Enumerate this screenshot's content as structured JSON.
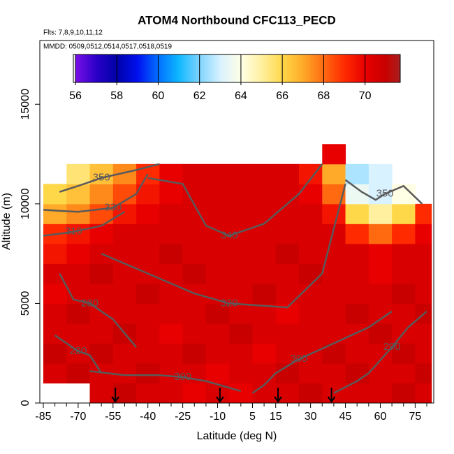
{
  "chart_data": {
    "type": "curtain",
    "title": "ATOM4 Northbound CFC113_PECD",
    "subtitle": "Flts: 7,8,9,10,11,12",
    "subtitle2": "MMDD: 0509,0512,0514,0517,0518,0519",
    "xlabel": "Latitude (deg N)",
    "ylabel": "Altitude (m)",
    "xlim": [
      -86.5,
      83
    ],
    "ylim": [
      0,
      18200
    ],
    "xticks": [
      -85,
      -70,
      -55,
      -40,
      -25,
      -10,
      5,
      15,
      30,
      45,
      60,
      75
    ],
    "xminorticks": [
      -80,
      -75,
      -65,
      -60,
      -50,
      -45,
      -35,
      -30,
      -20,
      -15,
      -5,
      0,
      10,
      20,
      25,
      35,
      40,
      50,
      55,
      65,
      70,
      80
    ],
    "yticks": [
      0,
      5000,
      10000,
      15000
    ],
    "colorbar_lim": [
      55.9,
      71.7
    ],
    "colorbar_ticks": [
      56,
      58,
      60,
      62,
      64,
      66,
      68,
      70
    ],
    "colorscale": [
      [
        56,
        "#7a10e8"
      ],
      [
        57,
        "#2a00c8"
      ],
      [
        58,
        "#0000a8"
      ],
      [
        59,
        "#0010f0"
      ],
      [
        60,
        "#0070ff"
      ],
      [
        61,
        "#10b8ff"
      ],
      [
        62,
        "#80d4ff"
      ],
      [
        63,
        "#d8f2ff"
      ],
      [
        64,
        "#ffffe6"
      ],
      [
        65,
        "#fff0a0"
      ],
      [
        66,
        "#ffd84a"
      ],
      [
        67,
        "#ffaa28"
      ],
      [
        68,
        "#ff6a10"
      ],
      [
        69,
        "#ff2a00"
      ],
      [
        70,
        "#e80000"
      ],
      [
        71,
        "#c80000"
      ],
      [
        71.7,
        "#a82020"
      ]
    ],
    "x_edges": [
      -85,
      -75,
      -65,
      -55,
      -45,
      -35,
      -25,
      -15,
      -5,
      5,
      15,
      25,
      35,
      45,
      55,
      65,
      75,
      82
    ],
    "y_edges": [
      0,
      1000,
      2000,
      3000,
      4000,
      5000,
      6000,
      7000,
      8000,
      9000,
      10000,
      11000,
      12000,
      13000
    ],
    "values": [
      [
        null,
        null,
        70.5,
        71,
        70.5,
        70.5,
        70,
        70.5,
        70,
        70.5,
        70.5,
        71,
        70.5,
        70.5,
        70.5,
        71,
        70.5
      ],
      [
        70.5,
        71,
        70.5,
        70.5,
        71,
        70.5,
        70.5,
        70,
        70.5,
        70.5,
        71,
        70.5,
        70.5,
        71,
        70.5,
        70.5,
        71
      ],
      [
        71,
        70.5,
        71,
        70.5,
        70.5,
        70.5,
        71,
        70.5,
        70.5,
        70,
        70.5,
        70.5,
        71,
        70.5,
        70.5,
        71,
        70.5
      ],
      [
        70.5,
        70.5,
        70.5,
        71,
        70.5,
        70,
        70.5,
        70.5,
        71,
        70.5,
        70.5,
        70.5,
        70.5,
        70.5,
        71,
        70.5,
        70.5
      ],
      [
        70.5,
        71,
        70.5,
        70.5,
        70.5,
        70.5,
        70.5,
        71,
        70.5,
        70.5,
        70,
        70.5,
        70.5,
        71,
        70.5,
        70.5,
        71
      ],
      [
        70,
        70.5,
        70.5,
        70.5,
        71,
        70.5,
        70.5,
        70.5,
        70.5,
        71,
        70.5,
        70.5,
        70.5,
        70.5,
        70.5,
        71,
        70.5
      ],
      [
        70.5,
        70.5,
        71,
        70.5,
        70.5,
        70.5,
        71,
        70.5,
        70.5,
        70.5,
        70.5,
        71,
        70.5,
        70.5,
        70,
        70.5,
        70.5
      ],
      [
        69.5,
        70,
        70.5,
        70.5,
        70.5,
        71,
        70.5,
        70.5,
        70.5,
        70.5,
        71,
        70.5,
        70.5,
        70.5,
        70,
        70.5,
        70.5
      ],
      [
        69,
        69.5,
        70,
        70.5,
        70.5,
        70.5,
        70.5,
        70.5,
        70.5,
        70.5,
        70.5,
        70.5,
        70.5,
        69,
        68,
        69,
        70
      ],
      [
        67,
        67.5,
        68.5,
        69.5,
        70,
        70.5,
        70.5,
        70.5,
        70.5,
        70.5,
        70.5,
        70.5,
        69.5,
        66,
        65,
        66,
        69
      ],
      [
        66,
        66.5,
        67.5,
        68.5,
        69.5,
        70,
        70.5,
        70.5,
        70.5,
        70.5,
        70.5,
        70,
        68,
        63.5,
        63,
        64,
        null
      ],
      [
        null,
        65.5,
        66.5,
        67.5,
        69,
        70,
        70.5,
        70.5,
        70.5,
        70.5,
        70.5,
        69.5,
        67,
        62.5,
        63,
        null,
        null
      ],
      [
        null,
        null,
        null,
        null,
        null,
        null,
        null,
        null,
        null,
        null,
        null,
        null,
        70,
        null,
        null,
        null,
        null
      ]
    ],
    "contours": [
      {
        "level": 350,
        "lat": [
          -78,
          -70,
          -60,
          -45,
          -35
        ],
        "alt": [
          10600,
          10900,
          11300,
          11700,
          12000
        ]
      },
      {
        "level": 330,
        "lat": [
          -85,
          -78,
          -70,
          -55,
          -45,
          -40
        ],
        "alt": [
          9700,
          9650,
          9600,
          9800,
          10500,
          11500
        ]
      },
      {
        "level": 310,
        "lat": [
          -85,
          -78,
          -72,
          -60,
          -50
        ],
        "alt": [
          8400,
          8500,
          8600,
          8900,
          9600
        ]
      },
      {
        "level": 340,
        "lat": [
          -40,
          -25,
          -15,
          -5,
          10,
          25,
          35
        ],
        "alt": [
          11300,
          11000,
          8900,
          8400,
          9000,
          10500,
          12000
        ]
      },
      {
        "level": 320,
        "lat": [
          -60,
          -40,
          -20,
          -5,
          20,
          35,
          45
        ],
        "alt": [
          7500,
          6500,
          5500,
          5000,
          4800,
          6500,
          11000
        ]
      },
      {
        "level": 280,
        "lat": [
          -78,
          -72,
          -65,
          -55,
          -45
        ],
        "alt": [
          6500,
          5200,
          5000,
          4200,
          2800
        ]
      },
      {
        "level": 280,
        "lat": [
          -80,
          -75,
          -70,
          -65,
          -60
        ],
        "alt": [
          3400,
          3000,
          2600,
          2400,
          1500
        ]
      },
      {
        "level": 300,
        "lat": [
          -65,
          -50,
          -35,
          -25,
          -15,
          0
        ],
        "alt": [
          1600,
          1400,
          1400,
          1300,
          1100,
          600
        ]
      },
      {
        "level": 300,
        "lat": [
          5,
          10,
          15,
          25,
          40,
          55,
          65
        ],
        "alt": [
          500,
          900,
          1500,
          2200,
          3000,
          3800,
          4600
        ]
      },
      {
        "level": 290,
        "lat": [
          40,
          50,
          55,
          65,
          72,
          80
        ],
        "alt": [
          500,
          1100,
          1500,
          2800,
          3800,
          4600
        ]
      },
      {
        "level": 350,
        "lat": [
          45,
          52,
          58,
          62,
          70,
          78
        ],
        "alt": [
          11200,
          10600,
          10200,
          10500,
          10900,
          10000
        ]
      }
    ],
    "flight_markers": [
      -54,
      -9,
      16,
      39
    ]
  }
}
